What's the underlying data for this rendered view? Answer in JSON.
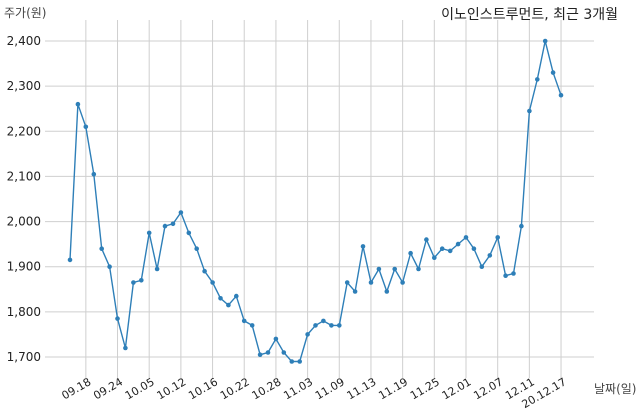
{
  "chart_data": {
    "type": "line",
    "title": "이노인스트루먼트, 최근 3개월",
    "ylabel": "주가(원)",
    "xlabel": "날짜(일)",
    "ylim": [
      1650,
      2450
    ],
    "yticks": [
      1700,
      1800,
      1900,
      2000,
      2100,
      2200,
      2300,
      2400
    ],
    "ytick_labels": [
      "1,700",
      "1,800",
      "1,900",
      "2,000",
      "2,100",
      "2,200",
      "2,300",
      "2,400"
    ],
    "grid": true,
    "line_color": "#2e7fb8",
    "x_tick_labels": [
      "09.18",
      "09.24",
      "10.05",
      "10.12",
      "10.16",
      "10.22",
      "10.28",
      "11.03",
      "11.09",
      "11.13",
      "11.19",
      "11.25",
      "12.01",
      "12.07",
      "12.11",
      "20.12.17"
    ],
    "x_tick_index": [
      2,
      6,
      10,
      14,
      18,
      22,
      26,
      30,
      34,
      38,
      42,
      46,
      50,
      54,
      58,
      62
    ],
    "series": [
      {
        "values": [
          1915,
          2260,
          2210,
          2105,
          1940,
          1900,
          1785,
          1720,
          1865,
          1870,
          1975,
          1895,
          1990,
          1995,
          2020,
          1975,
          1940,
          1890,
          1865,
          1830,
          1815,
          1835,
          1780,
          1770,
          1705,
          1710,
          1740,
          1710,
          1690,
          1690,
          1750,
          1770,
          1780,
          1770,
          1770,
          1865,
          1845,
          1945,
          1865,
          1895,
          1845,
          1895,
          1865,
          1930,
          1895,
          1960,
          1920,
          1940,
          1935,
          1950,
          1965,
          1940,
          1900,
          1925,
          1965,
          1880,
          1885,
          1990,
          2245,
          2315,
          2400,
          2330,
          2280
        ]
      }
    ]
  }
}
